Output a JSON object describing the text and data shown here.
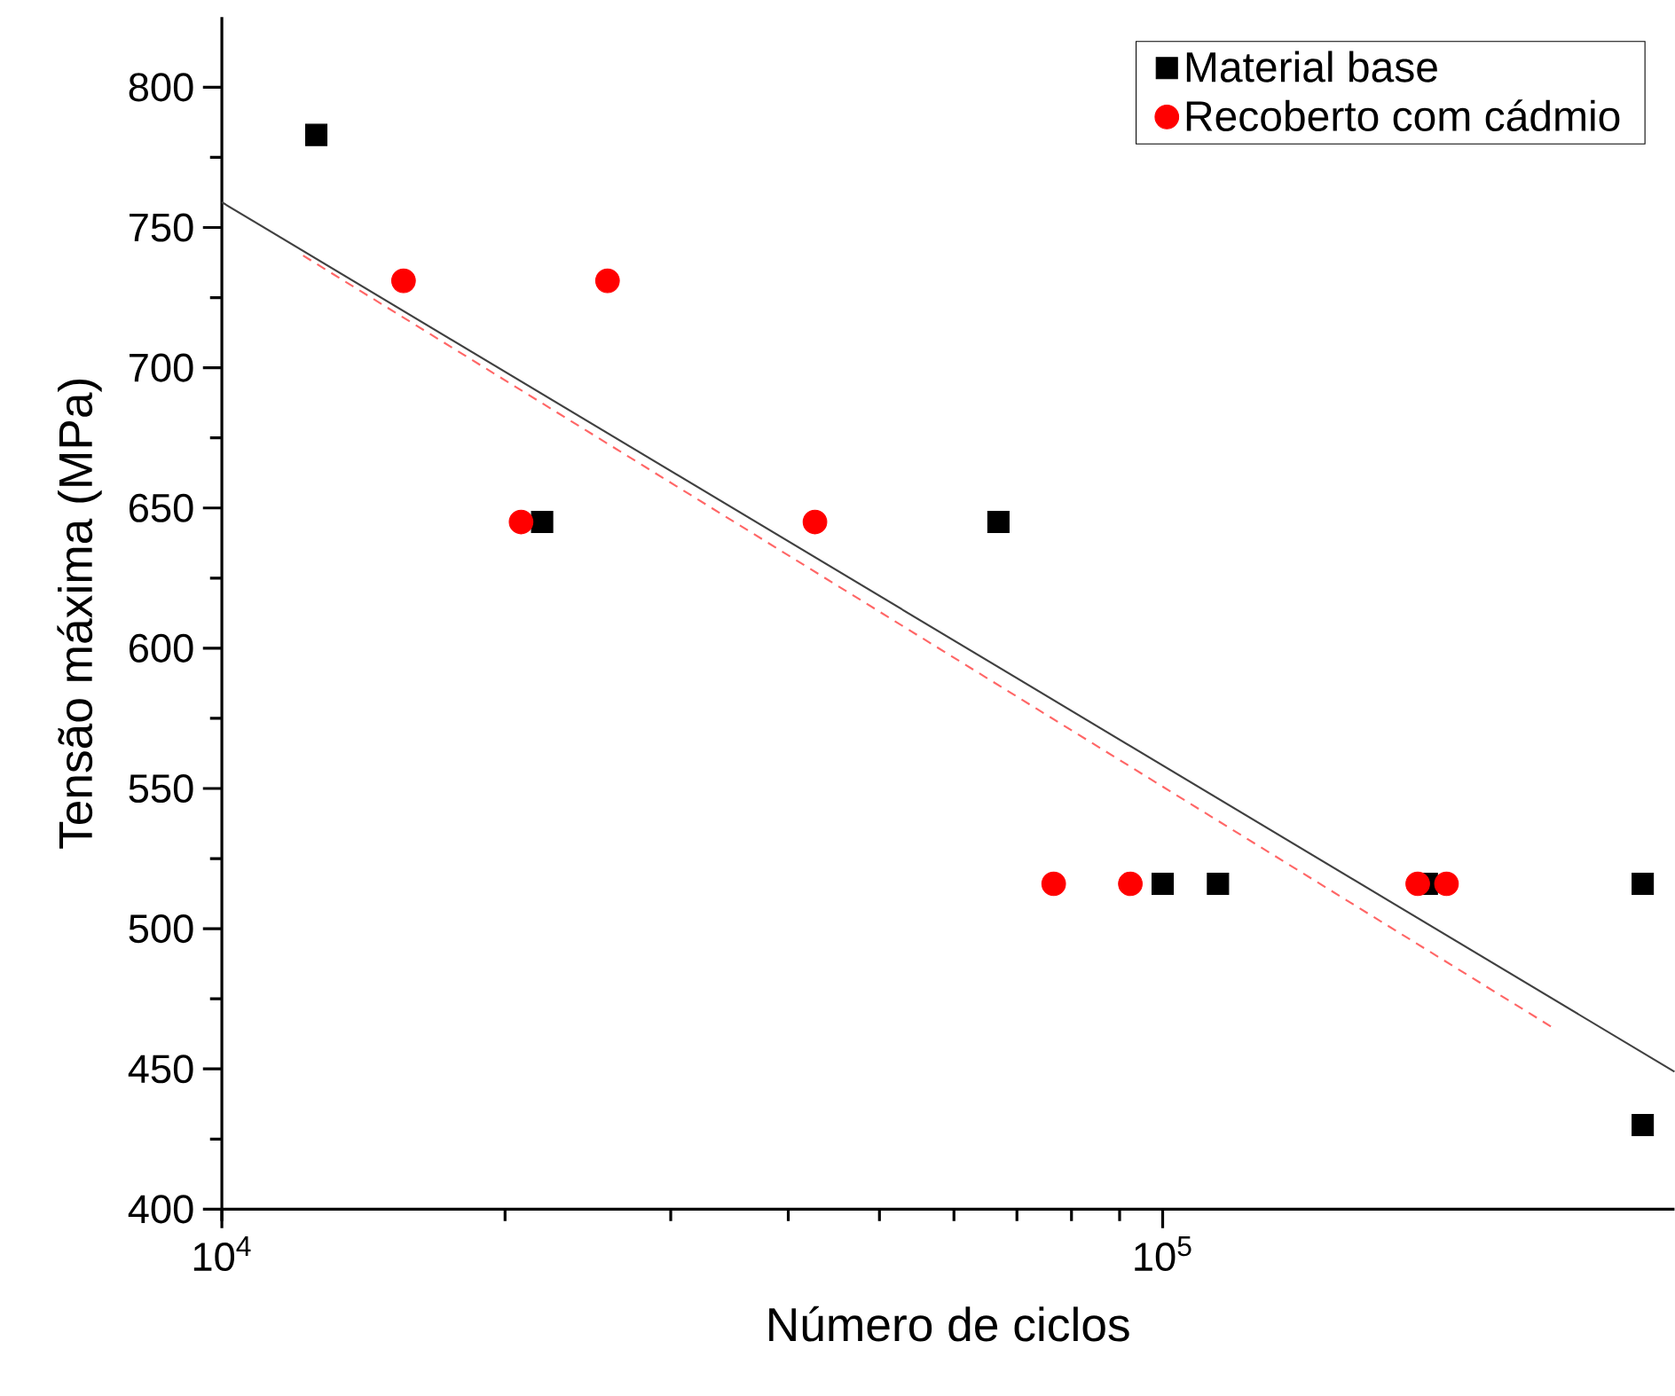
{
  "chart_data": {
    "type": "scatter",
    "xlabel": "Número de ciclos",
    "ylabel": "Tensão máxima (MPa)",
    "log": "x",
    "xlim": [
      10000,
      350000
    ],
    "ylim": [
      400,
      825
    ],
    "xticks": [
      {
        "value": 10000,
        "label": "10$^{4}$"
      },
      {
        "value": 100000,
        "label": "10$^{5}$"
      }
    ],
    "yticks": [
      400,
      450,
      500,
      550,
      600,
      650,
      700,
      750,
      800
    ],
    "legend": "top right",
    "grid": false,
    "series": [
      {
        "name": "Material base",
        "color": "#000000",
        "marker": "square",
        "x": [
          12600,
          21900,
          66900,
          100000,
          114500,
          190900,
          323800,
          323800
        ],
        "values": [
          783,
          645,
          645,
          516,
          516,
          516,
          516,
          430
        ]
      },
      {
        "name": "Recoberto com cádmio",
        "color": "#ff0000",
        "marker": "circle",
        "x": [
          15600,
          20800,
          25700,
          42700,
          76600,
          92400,
          186700,
          200300
        ],
        "values": [
          731,
          645,
          731,
          645,
          516,
          516,
          516,
          516
        ]
      },
      {
        "type": "line",
        "color": "#404040",
        "line_style": "solid",
        "marker": "none",
        "x": [
          10000,
          350000
        ],
        "values": [
          759,
          449
        ]
      },
      {
        "type": "line",
        "color": "#ff6666",
        "line_style": "dashed",
        "marker": "none",
        "x": [
          12200,
          259000
        ],
        "values": [
          740,
          465
        ]
      }
    ]
  }
}
